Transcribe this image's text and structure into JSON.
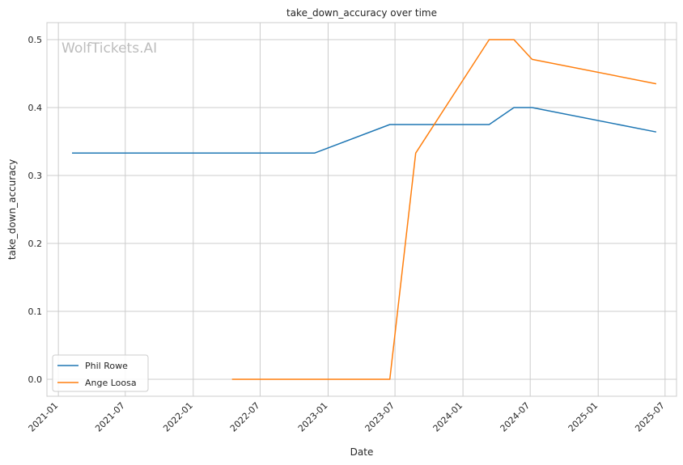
{
  "chart_data": {
    "type": "line",
    "title": "take_down_accuracy over time",
    "xlabel": "Date",
    "ylabel": "take_down_accuracy",
    "watermark": "WolfTickets.AI",
    "x_ticks": [
      "2021-01",
      "2021-07",
      "2022-01",
      "2022-07",
      "2023-01",
      "2023-07",
      "2024-01",
      "2024-07",
      "2025-01",
      "2025-07"
    ],
    "y_ticks": [
      "0.0",
      "0.1",
      "0.2",
      "0.3",
      "0.4",
      "0.5"
    ],
    "xlim": [
      "2020-12-01",
      "2025-08-01"
    ],
    "ylim": [
      -0.025,
      0.525
    ],
    "grid": true,
    "legend_position": "lower-left",
    "series": [
      {
        "name": "Phil Rowe",
        "color": "#1f77b4",
        "points": [
          [
            "2021-02-07",
            0.333
          ],
          [
            "2022-11-25",
            0.333
          ],
          [
            "2023-06-17",
            0.375
          ],
          [
            "2024-03-12",
            0.375
          ],
          [
            "2024-05-18",
            0.4
          ],
          [
            "2024-07-06",
            0.4
          ],
          [
            "2025-06-07",
            0.364
          ]
        ]
      },
      {
        "name": "Ange Loosa",
        "color": "#ff7f0e",
        "points": [
          [
            "2022-04-16",
            0.0
          ],
          [
            "2023-06-17",
            0.0
          ],
          [
            "2023-08-26",
            0.333
          ],
          [
            "2024-03-12",
            0.5
          ],
          [
            "2024-05-18",
            0.5
          ],
          [
            "2024-07-06",
            0.471
          ],
          [
            "2025-06-07",
            0.435
          ]
        ]
      }
    ]
  }
}
